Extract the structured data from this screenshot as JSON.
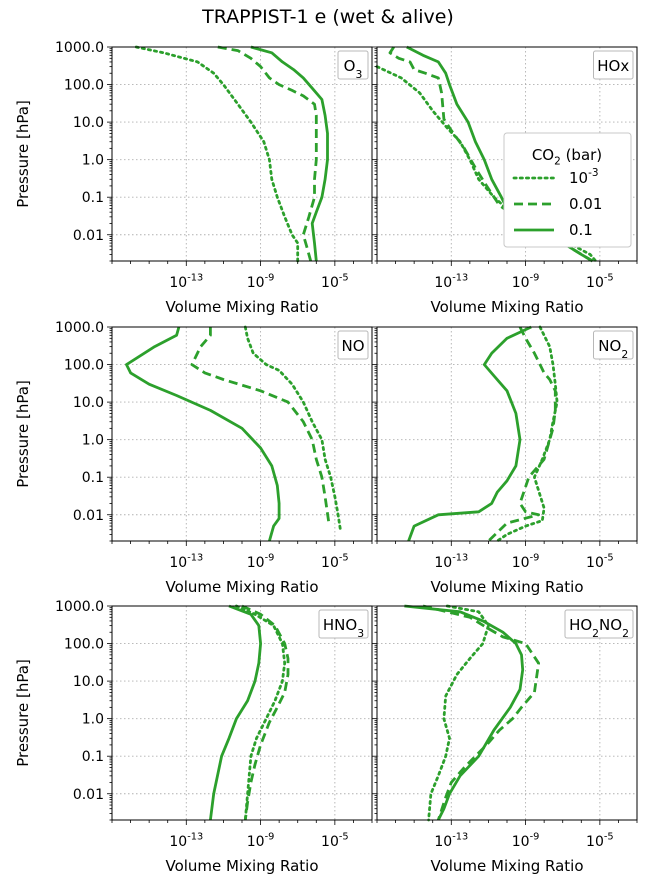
{
  "figure_title": "TRAPPIST-1 e (wet & alive)",
  "colors": {
    "series": "#2ca02c",
    "grid": "#b0b0b0",
    "frame": "#000000"
  },
  "shared_axes": {
    "ylabel": "Pressure [hPa]",
    "xlabel": "Volume Mixing Ratio",
    "yticks": [
      "0.01",
      "0.1",
      "1.0",
      "10.0",
      "100.0",
      "1000.0"
    ],
    "xticks": [
      "10^-13",
      "10^-9",
      "10^-5"
    ]
  },
  "legend": {
    "title": "CO2 (bar)",
    "entries": [
      "10^-3",
      "0.01",
      "0.1"
    ]
  },
  "chart_data": [
    {
      "type": "line",
      "title": "O3",
      "xscale": "log",
      "yscale": "log",
      "xlim": [
        1e-17,
        0.001
      ],
      "ylim": [
        1000,
        0.002
      ],
      "grid": true,
      "series": [
        {
          "name": "10^-3",
          "style": "dotted",
          "x": [
            2e-16,
            6e-15,
            4e-13,
            3e-12,
            1e-11,
            6e-11,
            3e-10,
            1.5e-09,
            3e-09,
            4e-09,
            8e-09,
            2e-08,
            5e-08,
            1e-07,
            1e-07
          ],
          "y": [
            1000,
            700,
            400,
            200,
            100,
            30,
            10,
            3,
            1,
            0.3,
            0.1,
            0.03,
            0.01,
            0.006,
            0.002
          ]
        },
        {
          "name": "0.01",
          "style": "dashed",
          "x": [
            5e-12,
            6e-11,
            3e-10,
            1e-09,
            3e-09,
            1e-08,
            5e-08,
            2e-07,
            8e-07,
            1e-06,
            1e-06,
            1e-06,
            8e-07,
            8e-07,
            4e-07,
            2e-07,
            3e-07,
            5e-07
          ],
          "y": [
            1000,
            800,
            500,
            300,
            150,
            100,
            70,
            50,
            30,
            15,
            5,
            1,
            0.3,
            0.1,
            0.03,
            0.01,
            0.005,
            0.002
          ]
        },
        {
          "name": "0.1",
          "style": "solid",
          "x": [
            3e-10,
            4e-09,
            1.5e-08,
            6e-08,
            2e-07,
            6e-07,
            2e-06,
            3e-06,
            4e-06,
            4e-06,
            3e-06,
            2e-06,
            1e-06,
            6e-07,
            8e-07,
            1e-06
          ],
          "y": [
            1000,
            700,
            400,
            250,
            150,
            80,
            40,
            15,
            5,
            1,
            0.3,
            0.1,
            0.04,
            0.02,
            0.006,
            0.002
          ]
        }
      ]
    },
    {
      "type": "line",
      "title": "HOx",
      "xscale": "log",
      "yscale": "log",
      "xlim": [
        1e-17,
        0.001
      ],
      "ylim": [
        1000,
        0.002
      ],
      "grid": true,
      "series": [
        {
          "name": "10^-3",
          "style": "dotted",
          "x": [
            1e-17,
            2e-16,
            2e-15,
            1e-14,
            6e-14,
            3e-13,
            1e-12,
            3e-12,
            2e-11,
            3e-10,
            3e-08,
            3e-06,
            6e-06
          ],
          "y": [
            300,
            150,
            60,
            20,
            7,
            3,
            1,
            0.3,
            0.1,
            0.03,
            0.01,
            0.003,
            0.002
          ]
        },
        {
          "name": "0.01",
          "style": "dashed",
          "x": [
            8e-17,
            5e-17,
            1.5e-16,
            6e-16,
            1e-15,
            4e-15,
            2e-14,
            3e-14,
            4e-14,
            1e-13,
            5e-13,
            2e-12,
            8e-12,
            4e-11,
            5e-10,
            2e-08,
            1e-06,
            4e-06
          ],
          "y": [
            1000,
            700,
            500,
            400,
            250,
            200,
            150,
            60,
            12,
            6,
            2,
            0.6,
            0.2,
            0.06,
            0.025,
            0.01,
            0.003,
            0.002
          ]
        },
        {
          "name": "0.1",
          "style": "solid",
          "x": [
            4e-16,
            3e-15,
            2e-14,
            5e-14,
            8e-14,
            2e-13,
            8e-13,
            2e-12,
            6e-12,
            1.5e-11,
            5e-11,
            1e-10,
            3e-10,
            1e-09,
            2e-08,
            1e-06,
            4e-06
          ],
          "y": [
            1000,
            600,
            400,
            200,
            100,
            30,
            10,
            3,
            1,
            0.3,
            0.1,
            0.05,
            0.03,
            0.02,
            0.01,
            0.003,
            0.002
          ]
        }
      ]
    },
    {
      "type": "line",
      "title": "NO",
      "xscale": "log",
      "yscale": "log",
      "xlim": [
        1e-17,
        0.001
      ],
      "ylim": [
        1000,
        0.002
      ],
      "grid": true,
      "series": [
        {
          "name": "10^-3",
          "style": "dotted",
          "x": [
            1.5e-10,
            2e-10,
            4e-10,
            2e-09,
            1e-08,
            5e-08,
            2e-07,
            6e-07,
            2e-06,
            3e-06,
            6e-06,
            1e-05,
            1.5e-05,
            2e-05
          ],
          "y": [
            1000,
            500,
            200,
            100,
            70,
            30,
            10,
            3,
            1,
            0.3,
            0.1,
            0.03,
            0.01,
            0.004
          ]
        },
        {
          "name": "0.01",
          "style": "dashed",
          "x": [
            2e-12,
            2e-12,
            6e-13,
            2e-13,
            1e-12,
            1e-11,
            1e-09,
            3e-08,
            2e-07,
            6e-07,
            1e-06,
            2e-06,
            3e-06,
            5e-06
          ],
          "y": [
            1000,
            600,
            300,
            100,
            60,
            40,
            20,
            10,
            3,
            1,
            0.3,
            0.1,
            0.03,
            0.005
          ]
        },
        {
          "name": "0.1",
          "style": "solid",
          "x": [
            4e-14,
            3e-14,
            2e-15,
            6e-17,
            1e-16,
            1e-15,
            3e-14,
            2e-12,
            1e-10,
            1e-09,
            4e-09,
            8e-09,
            1e-08,
            1e-08,
            5e-09,
            3e-09
          ],
          "y": [
            1000,
            600,
            300,
            100,
            60,
            30,
            15,
            6,
            2,
            0.6,
            0.2,
            0.06,
            0.02,
            0.008,
            0.005,
            0.002
          ]
        }
      ]
    },
    {
      "type": "line",
      "title": "NO2",
      "xscale": "log",
      "yscale": "log",
      "xlim": [
        1e-17,
        0.001
      ],
      "ylim": [
        1000,
        0.002
      ],
      "grid": true,
      "series": [
        {
          "name": "10^-3",
          "style": "dotted",
          "x": [
            6e-09,
            2e-08,
            3e-08,
            4e-08,
            5e-08,
            3e-08,
            2e-08,
            8e-09,
            3e-09,
            1e-08,
            8e-09,
            1e-09,
            1e-10,
            3e-11
          ],
          "y": [
            1000,
            300,
            100,
            30,
            10,
            3,
            1,
            0.3,
            0.1,
            0.015,
            0.007,
            0.005,
            0.003,
            0.002
          ]
        },
        {
          "name": "0.01",
          "style": "dashed",
          "x": [
            5e-10,
            1e-09,
            3e-09,
            1e-08,
            2e-08,
            4e-08,
            4e-08,
            3e-08,
            1e-08,
            1.5e-09,
            5e-10,
            1e-09,
            5e-09,
            1e-10,
            1e-11
          ],
          "y": [
            1000,
            500,
            200,
            60,
            40,
            20,
            6,
            2,
            0.3,
            0.1,
            0.02,
            0.012,
            0.01,
            0.006,
            0.002
          ]
        },
        {
          "name": "0.1",
          "style": "solid",
          "x": [
            2e-09,
            1e-10,
            1.5e-11,
            6e-12,
            2e-11,
            1e-10,
            3e-10,
            5e-10,
            3e-10,
            1e-10,
            3e-11,
            1.5e-11,
            3e-12,
            2e-14,
            1e-15,
            5e-16
          ],
          "y": [
            1000,
            500,
            200,
            100,
            50,
            20,
            5,
            1,
            0.2,
            0.08,
            0.04,
            0.02,
            0.012,
            0.01,
            0.005,
            0.002
          ]
        }
      ]
    },
    {
      "type": "line",
      "title": "HNO3",
      "xscale": "log",
      "yscale": "log",
      "xlim": [
        1e-17,
        0.001
      ],
      "ylim": [
        1000,
        0.002
      ],
      "grid": true,
      "series": [
        {
          "name": "10^-3",
          "style": "dotted",
          "x": [
            5e-11,
            5e-10,
            5e-09,
            1.5e-08,
            2e-08,
            1.5e-08,
            6e-09,
            2e-09,
            6e-10,
            3e-10,
            2e-10,
            1.5e-10
          ],
          "y": [
            1000,
            600,
            300,
            100,
            30,
            10,
            3,
            1,
            0.3,
            0.1,
            0.01,
            0.002
          ]
        },
        {
          "name": "0.01",
          "style": "dashed",
          "x": [
            1e-10,
            1e-09,
            6e-09,
            2e-08,
            3e-08,
            3e-08,
            2e-08,
            8e-09,
            3e-09,
            1e-09,
            5e-10,
            3e-10,
            2e-10,
            1.5e-10
          ],
          "y": [
            1000,
            600,
            300,
            100,
            40,
            15,
            5,
            2,
            0.8,
            0.2,
            0.06,
            0.02,
            0.006,
            0.002
          ]
        },
        {
          "name": "0.1",
          "style": "solid",
          "x": [
            2e-11,
            3e-10,
            8e-10,
            1e-09,
            8e-10,
            5e-10,
            2e-10,
            5e-11,
            2e-11,
            8e-12,
            3e-12,
            2e-12
          ],
          "y": [
            1000,
            600,
            300,
            100,
            30,
            10,
            3,
            1,
            0.3,
            0.1,
            0.01,
            0.002
          ]
        }
      ]
    },
    {
      "type": "line",
      "title": "HO2NO2",
      "xscale": "log",
      "yscale": "log",
      "xlim": [
        1e-17,
        0.001
      ],
      "ylim": [
        1000,
        0.002
      ],
      "grid": true,
      "series": [
        {
          "name": "10^-3",
          "style": "dotted",
          "x": [
            6e-14,
            3e-12,
            1e-11,
            5e-12,
            1e-12,
            2e-13,
            5e-14,
            4e-14,
            8e-14,
            5e-14,
            2e-14,
            8e-15,
            6e-15
          ],
          "y": [
            1000,
            700,
            300,
            100,
            40,
            15,
            4,
            1,
            0.3,
            0.1,
            0.03,
            0.01,
            0.002
          ]
        },
        {
          "name": "0.01",
          "style": "dashed",
          "x": [
            3e-15,
            1e-12,
            1e-11,
            6e-11,
            1e-09,
            5e-09,
            3e-09,
            6e-10,
            2e-10,
            4e-11,
            8e-12,
            2e-12,
            5e-13,
            1e-13,
            5e-14,
            2e-14
          ],
          "y": [
            1000,
            500,
            250,
            150,
            100,
            30,
            5,
            2,
            1,
            0.5,
            0.2,
            0.1,
            0.05,
            0.02,
            0.008,
            0.002
          ]
        },
        {
          "name": "0.1",
          "style": "solid",
          "x": [
            3e-16,
            3e-13,
            5e-12,
            6e-11,
            3e-10,
            6e-10,
            7e-10,
            5e-10,
            1.5e-10,
            2e-11,
            3e-12,
            3e-13,
            8e-14,
            4e-14,
            2e-14
          ],
          "y": [
            1000,
            700,
            400,
            200,
            100,
            50,
            20,
            6,
            2,
            0.5,
            0.1,
            0.03,
            0.01,
            0.004,
            0.002
          ]
        }
      ]
    }
  ]
}
